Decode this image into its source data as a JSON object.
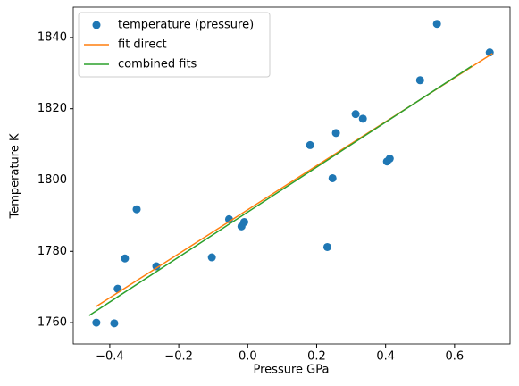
{
  "chart_data": {
    "type": "scatter",
    "xlabel": "Pressure GPa",
    "ylabel": "Temperature K",
    "xlim": [
      -0.506,
      0.761
    ],
    "ylim": [
      1754,
      1848.5
    ],
    "xticks": [
      {
        "value": -0.4,
        "label": "−0.4"
      },
      {
        "value": -0.2,
        "label": "−0.2"
      },
      {
        "value": 0.0,
        "label": "0.0"
      },
      0.2,
      0.4,
      0.6
    ],
    "yticks": [
      1760,
      1780,
      1800,
      1820,
      1840
    ],
    "legend": "upper left",
    "series": [
      {
        "name": "temperature (pressure)",
        "color": "#1f77b4",
        "type": "scatter",
        "x": [
          -0.439,
          -0.387,
          -0.377,
          -0.356,
          -0.322,
          -0.265,
          -0.104,
          -0.054,
          -0.018,
          -0.01,
          0.181,
          0.231,
          0.246,
          0.256,
          0.313,
          0.334,
          0.404,
          0.412,
          0.5,
          0.549,
          0.702
        ],
        "values": [
          1760.0,
          1759.8,
          1769.5,
          1778.0,
          1791.8,
          1775.8,
          1778.3,
          1789.0,
          1787.0,
          1788.2,
          1809.8,
          1781.2,
          1800.5,
          1813.2,
          1818.5,
          1817.2,
          1805.2,
          1806.0,
          1828.0,
          1843.8,
          1835.8
        ]
      },
      {
        "name": "fit direct",
        "color": "#ff7f0e",
        "type": "line",
        "x": [
          -0.44,
          0.71
        ],
        "values": [
          1764.5,
          1835.5
        ]
      },
      {
        "name": "combined fits",
        "color": "#2ca02c",
        "type": "line",
        "x": [
          -0.46,
          0.65
        ],
        "values": [
          1762.0,
          1832.0
        ]
      }
    ]
  }
}
